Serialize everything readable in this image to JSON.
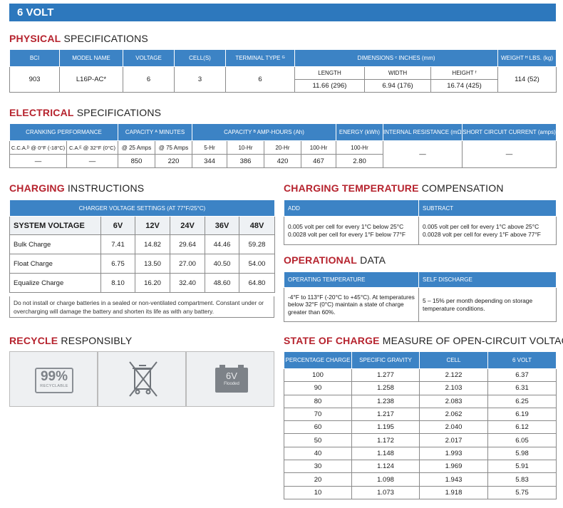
{
  "banner": "6 VOLT",
  "physical": {
    "h_bold": "PHYSICAL",
    "h_rest": " SPECIFICATIONS",
    "headers": [
      "BCI",
      "MODEL NAME",
      "VOLTAGE",
      "CELL(S)",
      "TERMINAL TYPE ᴳ",
      "DIMENSIONS ᶜ INCHES (mm)",
      "WEIGHT ᴴ LBS. (kg)"
    ],
    "dim_headers": [
      "LENGTH",
      "WIDTH",
      "HEIGHT ᶠ"
    ],
    "row": [
      "903",
      "L16P-AC*",
      "6",
      "3",
      "6",
      "11.66 (296)",
      "6.94 (176)",
      "16.74 (425)",
      "114 (52)"
    ]
  },
  "electrical": {
    "h_bold": "ELECTRICAL",
    "h_rest": " SPECIFICATIONS",
    "headers": [
      "CRANKING PERFORMANCE",
      "CAPACITY ᴬ MINUTES",
      "CAPACITY ᴮ AMP-HOURS (Ah)",
      "ENERGY (kWh)",
      "INTERNAL RESISTANCE (mΩ)",
      "SHORT CIRCUIT CURRENT (amps)"
    ],
    "sub": [
      "C.C.A.ᴰ @ 0°F (-18°C)",
      "C.A.ᴱ @ 32°F (0°C)",
      "@ 25 Amps",
      "@ 75 Amps",
      "5-Hr",
      "10-Hr",
      "20-Hr",
      "100-Hr",
      "100-Hr"
    ],
    "row": [
      "—",
      "—",
      "850",
      "220",
      "344",
      "386",
      "420",
      "467",
      "2.80",
      "—",
      "—"
    ]
  },
  "charging": {
    "h_bold": "CHARGING",
    "h_rest": " INSTRUCTIONS",
    "header": "CHARGER VOLTAGE SETTINGS (AT 77°F/25°C)",
    "cols": [
      "SYSTEM VOLTAGE",
      "6V",
      "12V",
      "24V",
      "36V",
      "48V"
    ],
    "rows": [
      [
        "Bulk Charge",
        "7.41",
        "14.82",
        "29.64",
        "44.46",
        "59.28"
      ],
      [
        "Float Charge",
        "6.75",
        "13.50",
        "27.00",
        "40.50",
        "54.00"
      ],
      [
        "Equalize Charge",
        "8.10",
        "16.20",
        "32.40",
        "48.60",
        "64.80"
      ]
    ],
    "note": "Do not install or charge batteries in a sealed or non-ventilated compartment. Constant under or overcharging will damage the battery and shorten its life as with any battery."
  },
  "charging_temp": {
    "h_bold": "CHARGING TEMPERATURE",
    "h_rest": " COMPENSATION",
    "headers": [
      "ADD",
      "SUBTRACT"
    ],
    "cells": [
      "0.005 volt per cell for every 1°C below 25°C 0.0028 volt per cell for every 1°F below 77°F",
      "0.005 volt per cell for every 1°C above 25°C 0.0028 volt per cell for every 1°F above 77°F"
    ]
  },
  "operational": {
    "h_bold": "OPERATIONAL",
    "h_rest": " DATA",
    "headers": [
      "OPERATING TEMPERATURE",
      "SELF DISCHARGE"
    ],
    "cells": [
      "-4°F to 113°F (-20°C to +45°C). At temperatures below 32°F (0°C) maintain a state of charge greater than 60%.",
      "5 – 15% per month depending on storage temperature conditions."
    ]
  },
  "recycle": {
    "h_bold": "RECYCLE",
    "h_rest": " RESPONSIBLY",
    "pct": "99%",
    "pct_sub": "RECYCLABLE",
    "batt_v": "6V",
    "batt_t": "Flooded",
    "icons": [
      "recyclable-99-icon",
      "crossed-out-bin-icon",
      "battery-6v-icon"
    ]
  },
  "soc": {
    "h_bold": "STATE OF CHARGE",
    "h_rest": " MEASURE OF OPEN-CIRCUIT VOLTAGE",
    "headers": [
      "PERCENTAGE CHARGE",
      "SPECIFIC GRAVITY",
      "CELL",
      "6 VOLT"
    ],
    "rows": [
      [
        "100",
        "1.277",
        "2.122",
        "6.37"
      ],
      [
        "90",
        "1.258",
        "2.103",
        "6.31"
      ],
      [
        "80",
        "1.238",
        "2.083",
        "6.25"
      ],
      [
        "70",
        "1.217",
        "2.062",
        "6.19"
      ],
      [
        "60",
        "1.195",
        "2.040",
        "6.12"
      ],
      [
        "50",
        "1.172",
        "2.017",
        "6.05"
      ],
      [
        "40",
        "1.148",
        "1.993",
        "5.98"
      ],
      [
        "30",
        "1.124",
        "1.969",
        "5.91"
      ],
      [
        "20",
        "1.098",
        "1.943",
        "5.83"
      ],
      [
        "10",
        "1.073",
        "1.918",
        "5.75"
      ]
    ]
  },
  "colors": {
    "accent": "#2d78bd",
    "header": "#3c83c5",
    "title_red": "#b6232e"
  }
}
